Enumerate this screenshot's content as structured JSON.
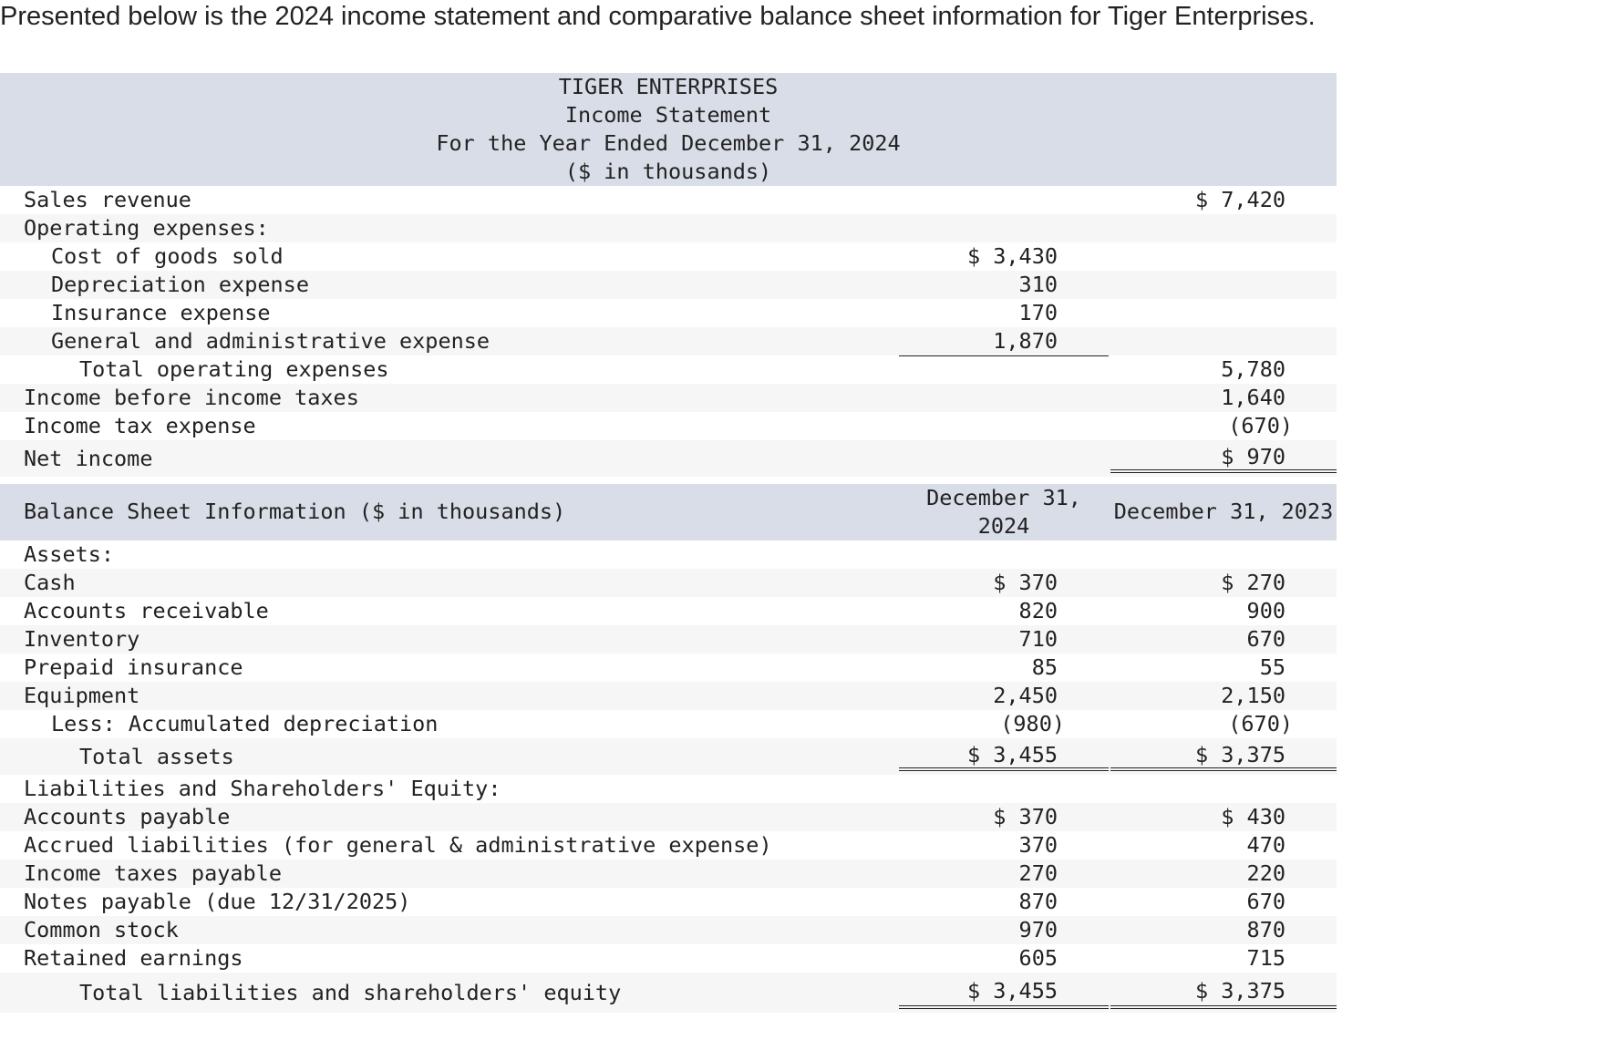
{
  "intro": "Presented below is the 2024 income statement and comparative balance sheet information for Tiger Enterprises.",
  "income_statement": {
    "company": "TIGER ENTERPRISES",
    "title": "Income Statement",
    "period": "For the Year Ended December 31, 2024",
    "units": "($ in thousands)",
    "rows": [
      {
        "label": "Sales revenue",
        "c1": "",
        "c2": "$ 7,420"
      },
      {
        "label": "Operating expenses:",
        "c1": "",
        "c2": ""
      },
      {
        "label": "Cost of goods sold",
        "c1": "$ 3,430",
        "c2": ""
      },
      {
        "label": "Depreciation expense",
        "c1": "310",
        "c2": ""
      },
      {
        "label": "Insurance expense",
        "c1": "170",
        "c2": ""
      },
      {
        "label": "General and administrative expense",
        "c1": "1,870",
        "c2": ""
      },
      {
        "label": "Total operating expenses",
        "c1": "",
        "c2": "5,780"
      },
      {
        "label": "Income before income taxes",
        "c1": "",
        "c2": "1,640"
      },
      {
        "label": "Income tax expense",
        "c1": "",
        "c2": "(670)"
      },
      {
        "label": "Net income",
        "c1": "",
        "c2": "$ 970"
      }
    ]
  },
  "balance_sheet": {
    "title": "Balance Sheet Information ($ in thousands)",
    "col1": "December 31, 2024",
    "col1_line1": "December 31,",
    "col1_line2": "2024",
    "col2": "December 31, 2023",
    "rows": [
      {
        "label": "Assets:",
        "c1": "",
        "c2": ""
      },
      {
        "label": "Cash",
        "c1": "$ 370",
        "c2": "$ 270"
      },
      {
        "label": "Accounts receivable",
        "c1": "820",
        "c2": "900"
      },
      {
        "label": "Inventory",
        "c1": "710",
        "c2": "670"
      },
      {
        "label": "Prepaid insurance",
        "c1": "85",
        "c2": "55"
      },
      {
        "label": "Equipment",
        "c1": "2,450",
        "c2": "2,150"
      },
      {
        "label": "Less: Accumulated depreciation",
        "c1": "(980)",
        "c2": "(670)"
      },
      {
        "label": "Total assets",
        "c1": "$ 3,455",
        "c2": "$ 3,375"
      },
      {
        "label": "Liabilities and Shareholders' Equity:",
        "c1": "",
        "c2": ""
      },
      {
        "label": "Accounts payable",
        "c1": "$ 370",
        "c2": "$ 430"
      },
      {
        "label": "Accrued liabilities (for general & administrative expense)",
        "c1": "370",
        "c2": "470"
      },
      {
        "label": "Income taxes payable",
        "c1": "270",
        "c2": "220"
      },
      {
        "label": "Notes payable (due 12/31/2025)",
        "c1": "870",
        "c2": "670"
      },
      {
        "label": "Common stock",
        "c1": "970",
        "c2": "870"
      },
      {
        "label": "Retained earnings",
        "c1": "605",
        "c2": "715"
      },
      {
        "label": "Total liabilities and shareholders' equity",
        "c1": "$ 3,455",
        "c2": "$ 3,375"
      }
    ]
  }
}
